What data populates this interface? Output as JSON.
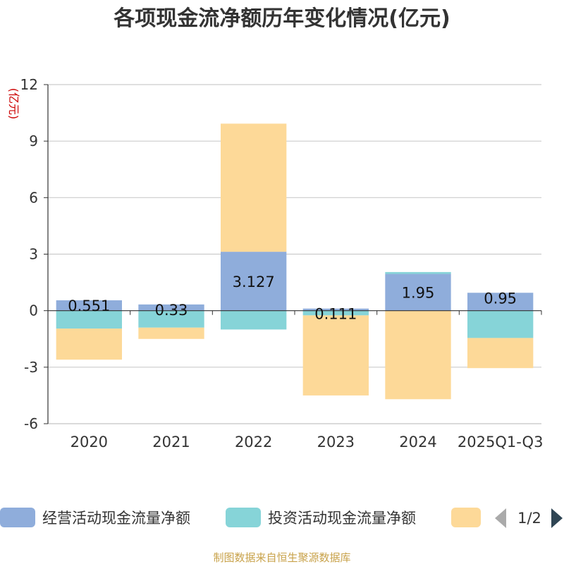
{
  "chart_data": {
    "type": "bar",
    "stacked": true,
    "title": "各项现金流净额历年变化情况(亿元)",
    "ylabel": "(亿元)",
    "ylim": [
      -6,
      12
    ],
    "yticks": [
      -6,
      -3,
      0,
      3,
      6,
      9,
      12
    ],
    "ytick_labels": [
      "-6",
      "-3",
      "0",
      "3",
      "6",
      "9",
      "12"
    ],
    "categories": [
      "2020",
      "2021",
      "2022",
      "2023",
      "2024",
      "2025Q1-Q3"
    ],
    "series": [
      {
        "name": "经营活动现金流量净额",
        "color": "#8faddb",
        "values": [
          0.551,
          0.33,
          3.127,
          0.111,
          1.95,
          0.95
        ],
        "labels": [
          "0.551",
          "0.33",
          "3.127",
          "0.111",
          "1.95",
          "0.95"
        ]
      },
      {
        "name": "投资活动现金流量净额",
        "color": "#86d4d8",
        "values": [
          -0.95,
          -0.9,
          -1.0,
          -0.25,
          0.1,
          -1.45
        ]
      },
      {
        "name": "",
        "color": "#fdd998",
        "values": [
          -1.65,
          -0.6,
          6.8,
          -4.25,
          -4.7,
          -1.6
        ]
      }
    ],
    "legend_page": "1/2",
    "source": "制图数据来自恒生聚源数据库"
  }
}
